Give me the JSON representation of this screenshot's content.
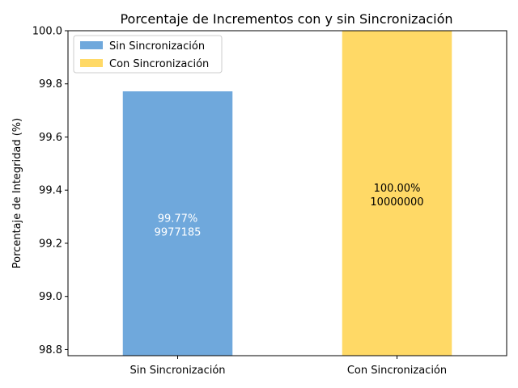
{
  "chart_data": {
    "type": "bar",
    "title": "Porcentaje de Incrementos con y sin Sincronización",
    "xlabel": "",
    "ylabel": "Porcentaje de Integridad (%)",
    "categories": [
      "Sin Sincronización",
      "Con Sincronización"
    ],
    "values": [
      99.77185,
      100.0
    ],
    "bar_labels": [
      {
        "pct": "99.77%",
        "count": "9977185"
      },
      {
        "pct": "100.00%",
        "count": "10000000"
      }
    ],
    "legend": [
      "Sin Sincronización",
      "Con Sincronización"
    ],
    "legend_position": "upper left",
    "colors": [
      "#6fa8dc",
      "#ffd966"
    ],
    "label_colors": [
      "#ffffff",
      "#000000"
    ],
    "ylim": [
      98.777,
      100.0
    ],
    "yticks": [
      "98.8",
      "99.0",
      "99.2",
      "99.4",
      "99.6",
      "99.8",
      "100.0"
    ],
    "grid": false
  }
}
